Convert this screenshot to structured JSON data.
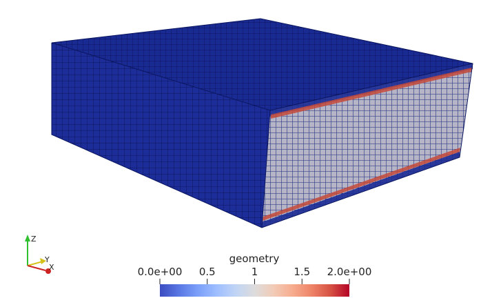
{
  "scene": {
    "colormap": [
      "#3b4cc0",
      "#5977e3",
      "#7b9ff9",
      "#9ebeff",
      "#c0d4f5",
      "#dddcdc",
      "#f2cbb7",
      "#f7ac8e",
      "#ee8468",
      "#d65244",
      "#b40426"
    ],
    "mesh_colors": {
      "top": "#1a2a93",
      "left": "#1c2d99",
      "right_face": "#b5b5c7",
      "grid_line": "#0b1660",
      "band": "#c64a3a"
    }
  },
  "colorbar": {
    "title": "geometry",
    "min_label": "0.0e+00",
    "max_label": "2.0e+00",
    "ticks": [
      {
        "value": 0.5,
        "label": "0.5"
      },
      {
        "value": 1,
        "label": "1"
      },
      {
        "value": 1.5,
        "label": "1.5"
      }
    ],
    "range": [
      0,
      2
    ]
  },
  "axes_triad": {
    "z_label": "Z",
    "y_label": "Y",
    "x_label": "X",
    "colors": {
      "z": "#2fbf2f",
      "y": "#d4c21a",
      "x": "#cc2222"
    }
  }
}
